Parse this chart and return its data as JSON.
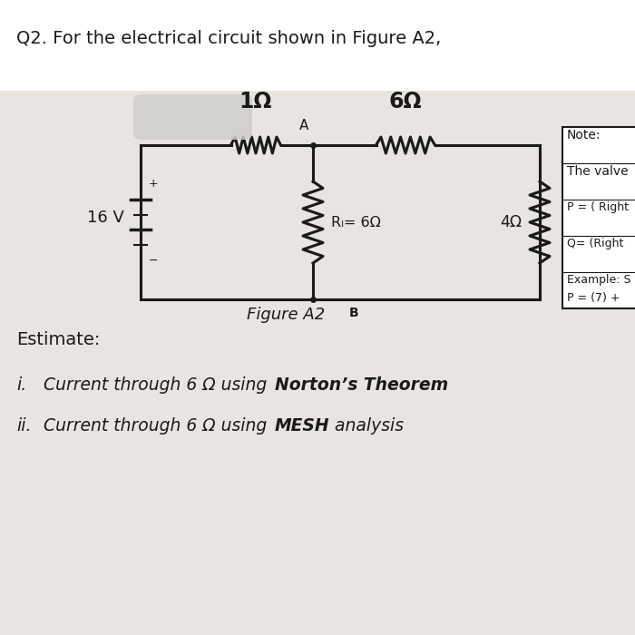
{
  "bg_top": "#ffffff",
  "bg_paper": "#e0ddd8",
  "title_text": "Q2. For the electrical circuit shown in Figure A2,",
  "figure_label": "Figure A2",
  "note_lines": [
    "Note:",
    "The valve",
    "",
    "P = ( Right",
    "Q= (Right",
    "Example: S",
    "P = (7) +"
  ],
  "estimate_text": "Estimate:",
  "circuit": {
    "v_label": "16 V",
    "r1_label": "1Ω",
    "r6_label": "6Ω",
    "rl_label": "Rₗ= 6Ω",
    "r4_label": "4Ω",
    "node_a": "A",
    "node_b": "B"
  }
}
